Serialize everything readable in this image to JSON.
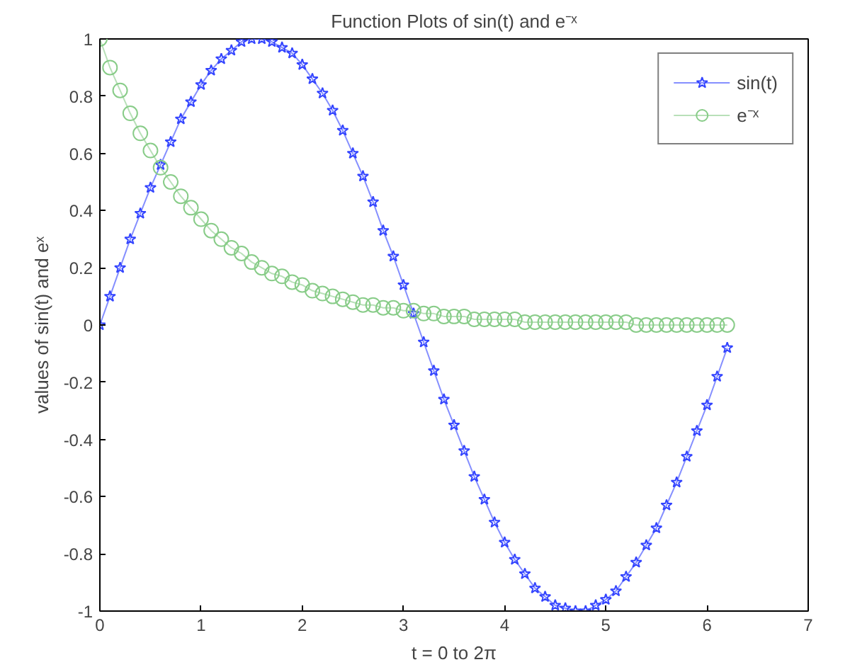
{
  "chart_data": {
    "type": "line",
    "title": "Function Plots of sin(t) and e⁻ˣ",
    "xlabel": "t = 0 to 2π",
    "ylabel": "values of sin(t) and eˣ",
    "xlim": [
      0,
      7
    ],
    "xticks": [
      0,
      1,
      2,
      3,
      4,
      5,
      6,
      7
    ],
    "ylim": [
      -1,
      1
    ],
    "yticks": [
      -1,
      -0.8,
      -0.6,
      -0.4,
      -0.2,
      0,
      0.2,
      0.4,
      0.6,
      0.8,
      1
    ],
    "grid": false,
    "legend": "top right",
    "series": [
      {
        "name": "sin(t)",
        "color": "#3344ff",
        "marker": "star",
        "x": [
          0,
          0.1,
          0.2,
          0.3,
          0.4,
          0.5,
          0.6,
          0.7,
          0.8,
          0.9,
          1.0,
          1.1,
          1.2,
          1.3,
          1.4,
          1.5,
          1.6,
          1.7,
          1.8,
          1.9,
          2.0,
          2.1,
          2.2,
          2.3,
          2.4,
          2.5,
          2.6,
          2.7,
          2.8,
          2.9,
          3.0,
          3.1,
          3.2,
          3.3,
          3.4,
          3.5,
          3.6,
          3.7,
          3.8,
          3.9,
          4.0,
          4.1,
          4.2,
          4.3,
          4.4,
          4.5,
          4.6,
          4.7,
          4.8,
          4.9,
          5.0,
          5.1,
          5.2,
          5.3,
          5.4,
          5.5,
          5.6,
          5.7,
          5.8,
          5.9,
          6.0,
          6.1,
          6.2
        ],
        "values": [
          0,
          0.1,
          0.2,
          0.3,
          0.39,
          0.48,
          0.56,
          0.64,
          0.72,
          0.78,
          0.84,
          0.89,
          0.93,
          0.96,
          0.99,
          1.0,
          1.0,
          0.99,
          0.97,
          0.95,
          0.91,
          0.86,
          0.81,
          0.75,
          0.68,
          0.6,
          0.52,
          0.43,
          0.33,
          0.24,
          0.14,
          0.04,
          -0.06,
          -0.16,
          -0.26,
          -0.35,
          -0.44,
          -0.53,
          -0.61,
          -0.69,
          -0.76,
          -0.82,
          -0.87,
          -0.92,
          -0.95,
          -0.98,
          -0.99,
          -1.0,
          -1.0,
          -0.98,
          -0.96,
          -0.93,
          -0.88,
          -0.83,
          -0.77,
          -0.71,
          -0.63,
          -0.55,
          -0.46,
          -0.37,
          -0.28,
          -0.18,
          -0.08
        ]
      },
      {
        "name": "e⁻ˣ",
        "color": "#88cc88",
        "marker": "circle",
        "x": [
          0,
          0.1,
          0.2,
          0.3,
          0.4,
          0.5,
          0.6,
          0.7,
          0.8,
          0.9,
          1.0,
          1.1,
          1.2,
          1.3,
          1.4,
          1.5,
          1.6,
          1.7,
          1.8,
          1.9,
          2.0,
          2.1,
          2.2,
          2.3,
          2.4,
          2.5,
          2.6,
          2.7,
          2.8,
          2.9,
          3.0,
          3.1,
          3.2,
          3.3,
          3.4,
          3.5,
          3.6,
          3.7,
          3.8,
          3.9,
          4.0,
          4.1,
          4.2,
          4.3,
          4.4,
          4.5,
          4.6,
          4.7,
          4.8,
          4.9,
          5.0,
          5.1,
          5.2,
          5.3,
          5.4,
          5.5,
          5.6,
          5.7,
          5.8,
          5.9,
          6.0,
          6.1,
          6.2
        ],
        "values": [
          1.0,
          0.9,
          0.82,
          0.74,
          0.67,
          0.61,
          0.55,
          0.5,
          0.45,
          0.41,
          0.37,
          0.33,
          0.3,
          0.27,
          0.25,
          0.22,
          0.2,
          0.18,
          0.17,
          0.15,
          0.14,
          0.12,
          0.11,
          0.1,
          0.09,
          0.08,
          0.07,
          0.07,
          0.06,
          0.06,
          0.05,
          0.05,
          0.04,
          0.04,
          0.03,
          0.03,
          0.03,
          0.02,
          0.02,
          0.02,
          0.02,
          0.02,
          0.01,
          0.01,
          0.01,
          0.01,
          0.01,
          0.01,
          0.01,
          0.01,
          0.01,
          0.01,
          0.01,
          0.0,
          0.0,
          0.0,
          0.0,
          0.0,
          0.0,
          0.0,
          0.0,
          0.0,
          0.0
        ]
      }
    ]
  }
}
